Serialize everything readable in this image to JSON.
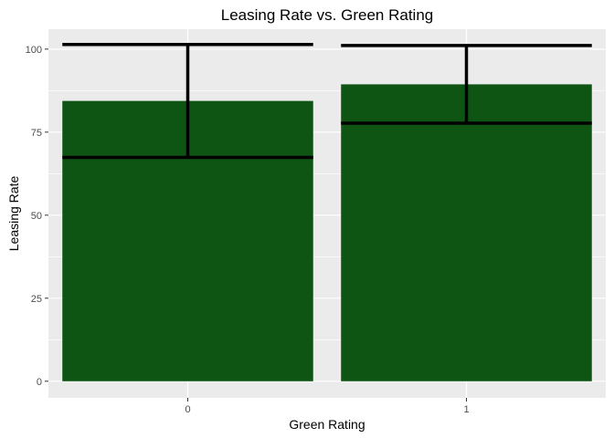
{
  "chart_data": {
    "type": "bar",
    "title": "Leasing Rate vs. Green Rating",
    "xlabel": "Green Rating",
    "ylabel": "Leasing Rate",
    "categories": [
      "0",
      "1"
    ],
    "values": [
      84.4,
      89.4
    ],
    "error_bars": {
      "lower": [
        67.4,
        77.7
      ],
      "upper": [
        101.4,
        101.1
      ]
    },
    "ylim": [
      -5,
      106
    ],
    "yticks": [
      0,
      25,
      50,
      75,
      100
    ],
    "ytick_labels": [
      "0",
      "25",
      "50",
      "75",
      "100"
    ],
    "grid": true,
    "legend": "none",
    "colors": {
      "bar": "#0e5514",
      "error_bar": "#000000",
      "panel_background": "#ebebeb",
      "grid": "#ffffff",
      "tick_label": "#4d4d4d"
    }
  }
}
